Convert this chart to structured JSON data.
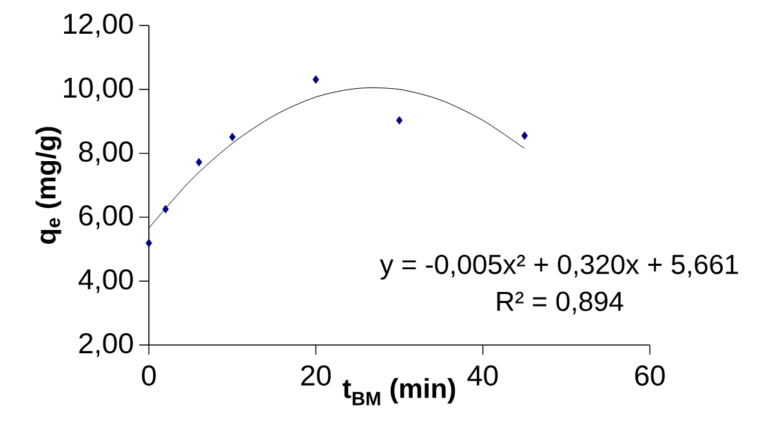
{
  "chart_data": {
    "type": "scatter",
    "xlabel": "t$_{BM}$ (min)",
    "ylabel": "q$_{e}$ (mg/g)",
    "xlim": [
      0,
      60
    ],
    "ylim": [
      2,
      12
    ],
    "xticks": [
      0,
      20,
      40,
      60
    ],
    "yticks": [
      {
        "value": 2,
        "label": "2,00"
      },
      {
        "value": 4,
        "label": "4,00"
      },
      {
        "value": 6,
        "label": "6,00"
      },
      {
        "value": 8,
        "label": "8,00"
      },
      {
        "value": 10,
        "label": "10,00"
      },
      {
        "value": 12,
        "label": "12,00"
      }
    ],
    "series": [
      {
        "marker": "diamond",
        "color": "#000080",
        "x": [
          0,
          2,
          6,
          10,
          20,
          30,
          45
        ],
        "values": [
          5.19,
          6.25,
          7.72,
          8.51,
          10.31,
          9.03,
          8.55
        ]
      },
      {
        "type": "line",
        "marker": "none",
        "color": "#000000",
        "x": [
          0,
          5,
          10,
          15,
          20,
          25,
          30,
          35,
          40,
          45
        ],
        "values": [
          5.66,
          7.15,
          8.31,
          9.18,
          9.76,
          10.03,
          10.0,
          9.66,
          9.03,
          8.15
        ]
      }
    ],
    "annotations": [
      "y = -0,005x² + 0,320x + 5,661",
      "R² = 0,894"
    ]
  }
}
